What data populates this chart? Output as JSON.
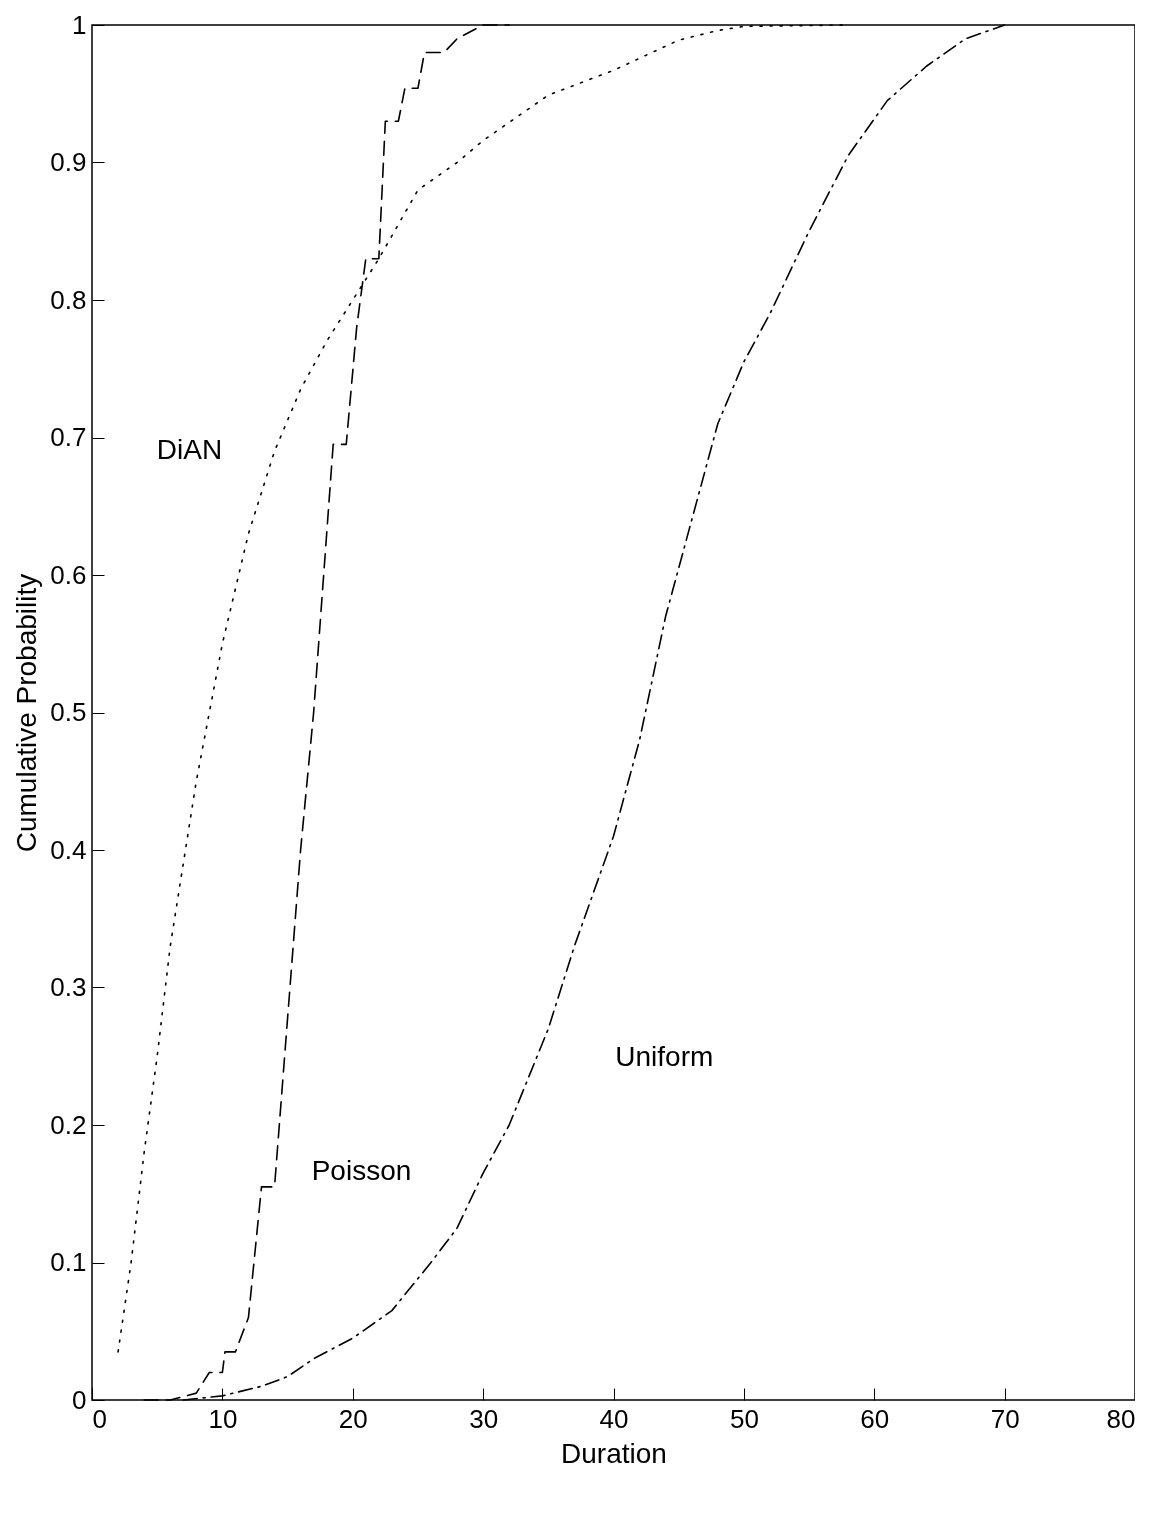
{
  "chart_data": {
    "type": "line",
    "xlabel": "Duration",
    "ylabel": "Cumulative Probability",
    "xlim": [
      0,
      80
    ],
    "xticks": [
      0,
      10,
      20,
      30,
      40,
      50,
      60,
      70,
      80
    ],
    "ylim": [
      0,
      1
    ],
    "yticks": [
      0,
      {
        "value": 0.1,
        "label": "0.1"
      },
      {
        "value": 0.2,
        "label": "0.2"
      },
      {
        "value": 0.3,
        "label": "0.3"
      },
      {
        "value": 0.4,
        "label": "0.4"
      },
      {
        "value": 0.5,
        "label": "0.5"
      },
      {
        "value": 0.6,
        "label": "0.6"
      },
      {
        "value": 0.7,
        "label": "0.7"
      },
      {
        "value": 0.8,
        "label": "0.8"
      },
      {
        "value": 0.9,
        "label": "0.9"
      },
      1
    ],
    "grid": false,
    "series": [
      {
        "name": "DiAN",
        "color": "#000000",
        "line_style": "dotted",
        "x": [
          2,
          3,
          4,
          5,
          6,
          8,
          10,
          12,
          14,
          16,
          18,
          20,
          22,
          25,
          28,
          30,
          35,
          40,
          45,
          48,
          50,
          58
        ],
        "values": [
          0.035,
          0.1,
          0.18,
          0.25,
          0.33,
          0.45,
          0.55,
          0.63,
          0.69,
          0.735,
          0.77,
          0.8,
          0.83,
          0.88,
          0.9,
          0.916,
          0.949,
          0.967,
          0.989,
          0.996,
          0.999,
          1.0
        ]
      },
      {
        "name": "Poisson",
        "color": "#000000",
        "line_style": "dashed",
        "x": [
          4,
          6,
          8,
          9,
          10,
          10.2,
          11,
          12,
          13,
          14,
          16,
          17,
          18,
          18.5,
          19.5,
          20.3,
          21,
          22,
          22.5,
          23.5,
          24,
          25,
          25.5,
          27,
          28,
          30,
          32
        ],
        "values": [
          0,
          0,
          0.005,
          0.02,
          0.02,
          0.035,
          0.035,
          0.06,
          0.155,
          0.155,
          0.4,
          0.5,
          0.63,
          0.695,
          0.695,
          0.78,
          0.83,
          0.83,
          0.93,
          0.93,
          0.954,
          0.954,
          0.98,
          0.98,
          0.99,
          1.0,
          1.0
        ]
      },
      {
        "name": "Uniform",
        "color": "#000000",
        "line_style": "dashdot",
        "x": [
          7,
          10,
          13,
          15,
          17,
          20,
          23,
          26,
          28,
          30,
          32,
          35,
          37,
          40,
          42,
          44,
          46,
          48,
          50,
          52,
          55,
          58,
          61,
          64,
          67,
          70
        ],
        "values": [
          0,
          0.003,
          0.01,
          0.017,
          0.03,
          0.045,
          0.065,
          0.1,
          0.125,
          0.165,
          0.2,
          0.27,
          0.33,
          0.41,
          0.48,
          0.57,
          0.64,
          0.71,
          0.755,
          0.79,
          0.85,
          0.905,
          0.945,
          0.97,
          0.99,
          1.0
        ]
      }
    ]
  }
}
